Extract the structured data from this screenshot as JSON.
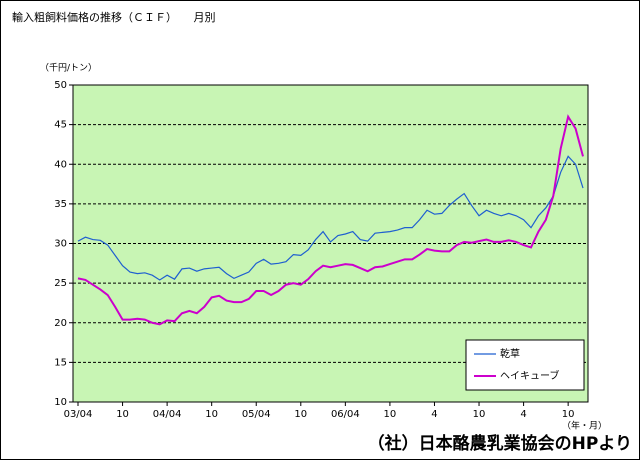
{
  "chart_data": {
    "type": "line",
    "title": "輸入粗飼料価格の推移（ＣＩＦ）　　月別",
    "y_unit": "（千円/トン）",
    "x_unit": "（年・月）",
    "source": "（社）日本酪農乳業協会のHPより",
    "categories": [
      "03/04",
      null,
      null,
      null,
      null,
      null,
      "10",
      null,
      null,
      null,
      null,
      null,
      "04/04",
      null,
      null,
      null,
      null,
      null,
      "10",
      null,
      null,
      null,
      null,
      null,
      "05/04",
      null,
      null,
      null,
      null,
      null,
      "10",
      null,
      null,
      null,
      null,
      null,
      "06/04",
      null,
      null,
      null,
      null,
      null,
      "10",
      null,
      null,
      null,
      null,
      null,
      "4",
      null,
      null,
      null,
      null,
      null,
      "10",
      null,
      null,
      null,
      null,
      null,
      "4",
      null,
      null,
      null,
      null,
      null,
      "10",
      null,
      null
    ],
    "series": [
      {
        "name": "乾草",
        "color": "#1f5fd0",
        "values": [
          30.3,
          30.8,
          30.5,
          30.4,
          29.8,
          28.5,
          27.2,
          26.4,
          26.2,
          26.3,
          26.0,
          25.4,
          26.0,
          25.5,
          26.8,
          26.9,
          26.5,
          26.8,
          26.9,
          27.0,
          26.2,
          25.6,
          26.0,
          26.4,
          27.5,
          28.0,
          27.4,
          27.5,
          27.7,
          28.6,
          28.5,
          29.2,
          30.5,
          31.5,
          30.2,
          31.0,
          31.2,
          31.5,
          30.5,
          30.3,
          31.3,
          31.4,
          31.5,
          31.7,
          32.0,
          32.0,
          33.0,
          34.2,
          33.7,
          33.8,
          34.8,
          35.6,
          36.3,
          34.8,
          33.5,
          34.2,
          33.8,
          33.5,
          33.8,
          33.5,
          33.0,
          32.0,
          33.5,
          34.5,
          36.0,
          39.0,
          41.0,
          40.0,
          37.0
        ]
      },
      {
        "name": "ヘイキューブ",
        "color": "#cc00cc",
        "values": [
          25.6,
          25.4,
          24.8,
          24.2,
          23.5,
          22.0,
          20.4,
          20.4,
          20.5,
          20.4,
          20.0,
          19.8,
          20.3,
          20.2,
          21.2,
          21.5,
          21.2,
          22.0,
          23.2,
          23.4,
          22.8,
          22.6,
          22.6,
          23.0,
          24.0,
          24.0,
          23.5,
          24.0,
          24.8,
          25.0,
          24.8,
          25.5,
          26.5,
          27.2,
          27.0,
          27.2,
          27.4,
          27.3,
          26.9,
          26.5,
          27.0,
          27.1,
          27.4,
          27.7,
          28.0,
          28.0,
          28.6,
          29.3,
          29.1,
          29.0,
          29.0,
          29.8,
          30.2,
          30.1,
          30.3,
          30.5,
          30.2,
          30.2,
          30.4,
          30.2,
          29.8,
          29.5,
          31.5,
          33.0,
          36.0,
          42.0,
          46.0,
          44.5,
          41.0
        ]
      }
    ],
    "ylim": [
      10,
      50
    ],
    "yticks": [
      10,
      15,
      20,
      25,
      30,
      35,
      40,
      45,
      50
    ],
    "grid": true,
    "plot_background": "#c8f5b4",
    "legend_position": "lower right"
  }
}
